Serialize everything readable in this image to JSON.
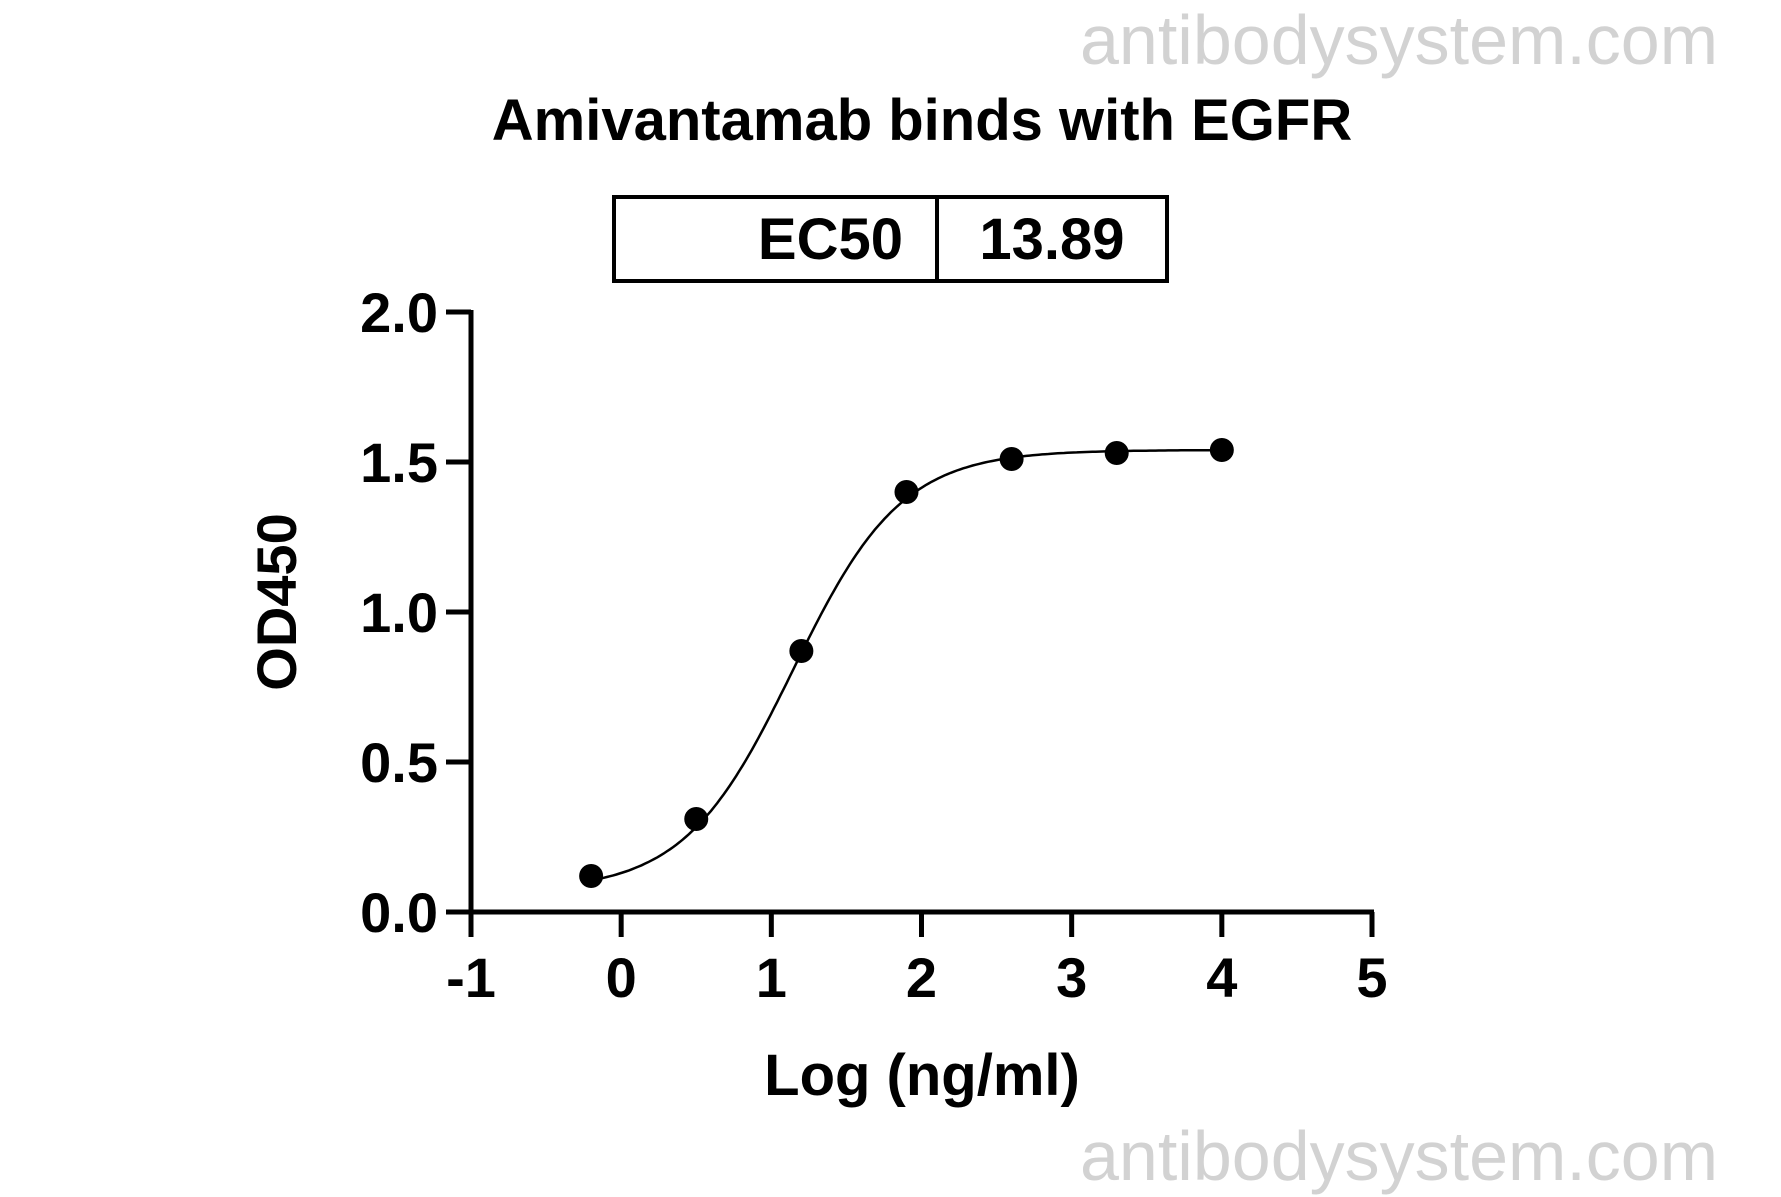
{
  "watermark": "antibodysystem.com",
  "chart_data": {
    "type": "scatter",
    "title": "Amivantamab binds with EGFR",
    "xlabel": "Log (ng/ml)",
    "ylabel": "OD450",
    "xlim": [
      -1,
      5
    ],
    "ylim": [
      0,
      2.0
    ],
    "xticks": [
      "-1",
      "0",
      "1",
      "2",
      "3",
      "4",
      "5"
    ],
    "yticks": [
      "0.0",
      "0.5",
      "1.0",
      "1.5",
      "2.0"
    ],
    "grid": false,
    "fit": "sigmoidal dose-response curve",
    "table": {
      "label": "EC50",
      "value": "13.89"
    },
    "points": [
      {
        "x": -0.2,
        "y": 0.12
      },
      {
        "x": 0.5,
        "y": 0.31
      },
      {
        "x": 1.2,
        "y": 0.87
      },
      {
        "x": 1.9,
        "y": 1.4
      },
      {
        "x": 2.6,
        "y": 1.51
      },
      {
        "x": 3.3,
        "y": 1.53
      },
      {
        "x": 4.0,
        "y": 1.54
      }
    ],
    "colors": {
      "axis": "#000000",
      "points": "#000000",
      "watermark": "#cfcfcf"
    }
  }
}
